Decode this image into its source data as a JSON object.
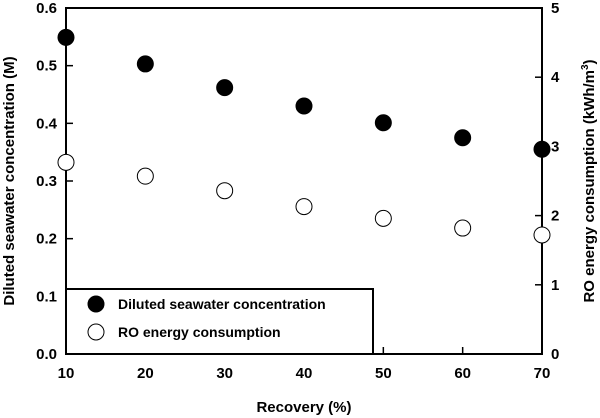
{
  "chart_data": {
    "type": "scatter",
    "title": "",
    "xlabel": "Recovery (%)",
    "ylabel_left": "Diluted seawater concentration (M)",
    "ylabel_right_main": "RO energy consumption (kWh/m",
    "ylabel_right_sup": "3",
    "ylabel_right_close": ")",
    "xlim": [
      10,
      70
    ],
    "ylim_left": [
      0,
      0.6
    ],
    "ylim_right": [
      0,
      5
    ],
    "x_ticks": [
      "10",
      "20",
      "30",
      "40",
      "50",
      "60",
      "70"
    ],
    "y_left_ticks": [
      "0.0",
      "0.1",
      "0.2",
      "0.3",
      "0.4",
      "0.5",
      "0.6"
    ],
    "y_right_ticks": [
      "0",
      "1",
      "2",
      "3",
      "4",
      "5"
    ],
    "grid": false,
    "legend_position": "bottom-left",
    "series": [
      {
        "name": "Diluted seawater concentration",
        "axis": "left",
        "marker": "filled-circle",
        "color": "#000000",
        "x": [
          10,
          20,
          30,
          40,
          50,
          60,
          70
        ],
        "y": [
          0.549,
          0.503,
          0.462,
          0.43,
          0.401,
          0.375,
          0.355
        ]
      },
      {
        "name": "RO energy consumption",
        "axis": "right",
        "marker": "open-circle",
        "color": "#000000",
        "x": [
          10,
          20,
          30,
          40,
          50,
          60,
          70
        ],
        "y": [
          2.77,
          2.57,
          2.36,
          2.13,
          1.96,
          1.82,
          1.72
        ]
      }
    ]
  }
}
